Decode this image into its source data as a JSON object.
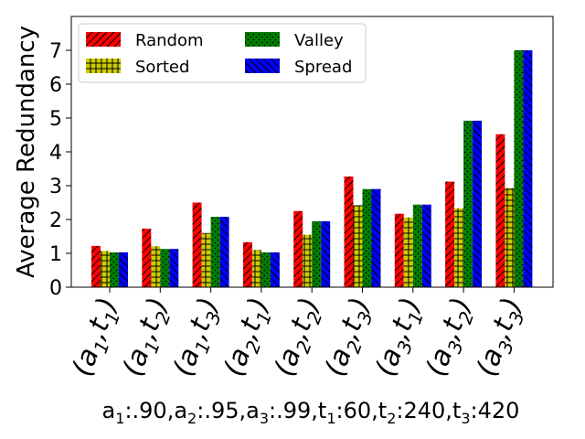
{
  "chart_data": {
    "type": "bar",
    "ylabel": "Average Redundancy",
    "xlabel_parts": [
      {
        "base": "a",
        "sub": "1",
        "value": ":.90,"
      },
      {
        "base": "a",
        "sub": "2",
        "value": ":.95,"
      },
      {
        "base": "a",
        "sub": "3",
        "value": ":.99,"
      },
      {
        "base": "t",
        "sub": "1",
        "value": ":60,"
      },
      {
        "base": "t",
        "sub": "2",
        "value": ":240,"
      },
      {
        "base": "t",
        "sub": "3",
        "value": ":420"
      }
    ],
    "ylim": [
      0,
      8
    ],
    "yticks": [
      0,
      1,
      2,
      3,
      4,
      5,
      6,
      7
    ],
    "grid": false,
    "legend_placement": "top-left",
    "legend_columns": 2,
    "categories": [
      {
        "a": "1",
        "t": "1"
      },
      {
        "a": "1",
        "t": "2"
      },
      {
        "a": "1",
        "t": "3"
      },
      {
        "a": "2",
        "t": "1"
      },
      {
        "a": "2",
        "t": "2"
      },
      {
        "a": "2",
        "t": "3"
      },
      {
        "a": "3",
        "t": "1"
      },
      {
        "a": "3",
        "t": "2"
      },
      {
        "a": "3",
        "t": "3"
      }
    ],
    "series": [
      {
        "name": "Random",
        "color": "#ff0000",
        "hatch": "slash",
        "values": [
          1.22,
          1.73,
          2.5,
          1.33,
          2.25,
          3.27,
          2.17,
          3.12,
          4.52
        ]
      },
      {
        "name": "Sorted",
        "color": "#cccc00",
        "hatch": "grid",
        "values": [
          1.07,
          1.21,
          1.6,
          1.1,
          1.55,
          2.42,
          2.06,
          2.33,
          2.93
        ]
      },
      {
        "name": "Valley",
        "color": "#007f00",
        "hatch": "dots",
        "values": [
          1.03,
          1.13,
          2.08,
          1.03,
          1.95,
          2.9,
          2.44,
          4.92,
          7.0
        ]
      },
      {
        "name": "Spread",
        "color": "#0000ff",
        "hatch": "backslash",
        "values": [
          1.03,
          1.13,
          2.08,
          1.03,
          1.95,
          2.9,
          2.44,
          4.92,
          7.0
        ]
      }
    ]
  }
}
